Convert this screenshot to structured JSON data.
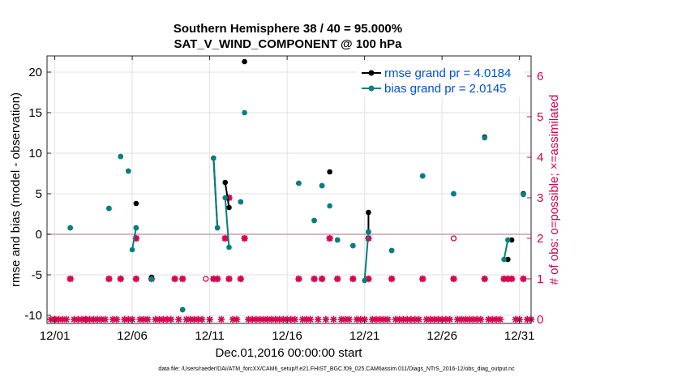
{
  "chart_data": {
    "type": "line",
    "title": "Southern Hemisphere 38 / 40 = 95.000%",
    "subtitle": "SAT_V_WIND_COMPONENT @ 100 hPa",
    "xlabel": "Dec.01,2016 00:00:00 start",
    "ylabel": "rmse and bias (model - observation)",
    "y2label": "# of obs: o=possible; ×=assimilated",
    "footer": "data file: /Users/raeder/DAI/ATM_forcXX/CAM6_setup/f.e21.FHIST_BGC.f09_025.CAM6assim.011/Diags_NTrS_2016-12/obs_diag_output.nc",
    "xlim": [
      0.5,
      31.75
    ],
    "ylim": [
      -11,
      22
    ],
    "y2lim": [
      -0.1,
      6.5
    ],
    "x_ticks": [
      1,
      6,
      11,
      16,
      21,
      26,
      31
    ],
    "x_tick_labels": [
      "12/01",
      "12/06",
      "12/11",
      "12/16",
      "12/21",
      "12/26",
      "12/31"
    ],
    "y_ticks": [
      -10,
      -5,
      0,
      5,
      10,
      15,
      20
    ],
    "y2_ticks": [
      0,
      1,
      2,
      3,
      4,
      5,
      6
    ],
    "grid": true,
    "legend_position": "top-right",
    "series": [
      {
        "name": "rmse grand pr = 4.0184",
        "color": "#000000",
        "points": [
          [
            2,
            0.8
          ],
          [
            4.5,
            3.2
          ],
          [
            5.25,
            9.6
          ],
          [
            5.75,
            7.8
          ],
          [
            6.25,
            3.8
          ],
          [
            6.25,
            0.8
          ],
          [
            7.25,
            -5.3
          ],
          [
            9.25,
            -9.3
          ],
          [
            11.25,
            9.4
          ],
          [
            11.5,
            0.8
          ],
          [
            12,
            6.4
          ],
          [
            12.25,
            3.3
          ],
          [
            13,
            4.0
          ],
          [
            13.25,
            21.3
          ],
          [
            16.75,
            6.3
          ],
          [
            17.75,
            1.7
          ],
          [
            18.25,
            6.0
          ],
          [
            18.75,
            7.7
          ],
          [
            19.25,
            -0.7
          ],
          [
            20.25,
            -1.4
          ],
          [
            21.25,
            2.7
          ],
          [
            21.25,
            0.3
          ],
          [
            22.75,
            -2.0
          ],
          [
            24.75,
            7.2
          ],
          [
            26.75,
            5.0
          ],
          [
            28.75,
            12.0
          ],
          [
            30.25,
            -3.1
          ],
          [
            30.5,
            -0.7
          ],
          [
            31.25,
            5.0
          ]
        ],
        "segments": [
          [
            [
              11.25,
              9.4
            ],
            [
              11.5,
              0.8
            ]
          ],
          [
            [
              12,
              6.4
            ],
            [
              12.25,
              3.3
            ]
          ],
          [
            [
              21.25,
              2.7
            ],
            [
              21.25,
              0.3
            ]
          ]
        ]
      },
      {
        "name": "bias grand pr = 2.0145",
        "color": "#008080",
        "points": [
          [
            2,
            0.8
          ],
          [
            4.5,
            3.2
          ],
          [
            5.25,
            9.6
          ],
          [
            5.75,
            7.8
          ],
          [
            6,
            -1.9
          ],
          [
            6.25,
            0.8
          ],
          [
            7.25,
            -5.5
          ],
          [
            9.25,
            -9.3
          ],
          [
            11.25,
            9.4
          ],
          [
            11.5,
            0.8
          ],
          [
            12,
            4.5
          ],
          [
            12.25,
            -1.6
          ],
          [
            13,
            4.0
          ],
          [
            13.25,
            15.0
          ],
          [
            16.75,
            6.3
          ],
          [
            17.75,
            1.7
          ],
          [
            18.25,
            6.0
          ],
          [
            18.75,
            3.5
          ],
          [
            19.25,
            -0.7
          ],
          [
            20.25,
            -1.4
          ],
          [
            21,
            -5.7
          ],
          [
            21.25,
            0.3
          ],
          [
            22.75,
            -2.0
          ],
          [
            24.75,
            7.2
          ],
          [
            26.75,
            5.0
          ],
          [
            28.75,
            11.9
          ],
          [
            30,
            -3.1
          ],
          [
            30.25,
            -0.7
          ],
          [
            31.25,
            4.9
          ]
        ],
        "segments": [
          [
            [
              6,
              -1.9
            ],
            [
              6.25,
              0.8
            ]
          ],
          [
            [
              11.25,
              9.4
            ],
            [
              11.5,
              0.8
            ]
          ],
          [
            [
              12,
              4.5
            ],
            [
              12.25,
              -1.6
            ]
          ],
          [
            [
              21,
              -5.7
            ],
            [
              21.25,
              0.3
            ]
          ],
          [
            [
              30,
              -3.1
            ],
            [
              30.25,
              -0.7
            ]
          ]
        ]
      }
    ],
    "obs_count": {
      "color": "#d8004f",
      "assimilated": [
        [
          1,
          0
        ],
        [
          2,
          1
        ],
        [
          3,
          0
        ],
        [
          4.5,
          1
        ],
        [
          5.25,
          1
        ],
        [
          6.25,
          2
        ],
        [
          6.25,
          1
        ],
        [
          7.25,
          1
        ],
        [
          8.75,
          1
        ],
        [
          9.25,
          1
        ],
        [
          11.25,
          1
        ],
        [
          11.5,
          1
        ],
        [
          12,
          2
        ],
        [
          12.25,
          3
        ],
        [
          12.25,
          1
        ],
        [
          13,
          1
        ],
        [
          13.25,
          2
        ],
        [
          16.75,
          1
        ],
        [
          17.75,
          1
        ],
        [
          18.25,
          1
        ],
        [
          18.75,
          2
        ],
        [
          19.25,
          1
        ],
        [
          20.25,
          1
        ],
        [
          21.25,
          1
        ],
        [
          21.25,
          2
        ],
        [
          22.75,
          1
        ],
        [
          24.75,
          1
        ],
        [
          26.75,
          1
        ],
        [
          28.75,
          1
        ],
        [
          30,
          1
        ],
        [
          30.25,
          1
        ],
        [
          30.5,
          1
        ],
        [
          31.25,
          1
        ]
      ],
      "possible_only": [
        [
          10.75,
          1
        ],
        [
          26.75,
          2
        ]
      ],
      "zero_days_start": 0.75,
      "zero_days_end": 31.75,
      "zero_days_step": 0.25
    }
  }
}
